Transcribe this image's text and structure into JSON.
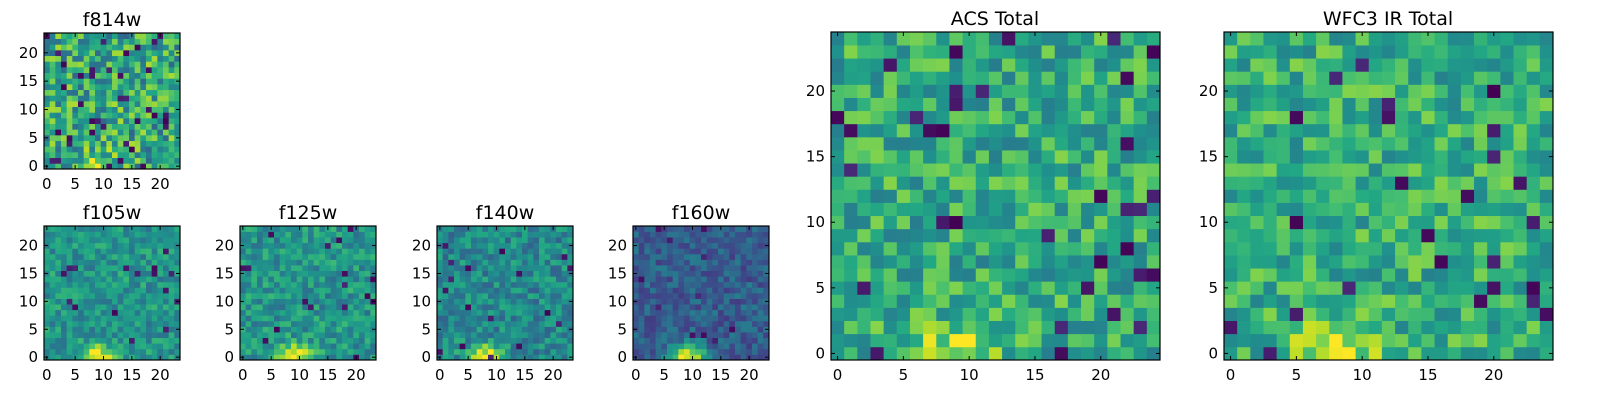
{
  "chart_data": [
    {
      "type": "heatmap",
      "title": "f814w",
      "grid_size": 24,
      "colormap": "viridis",
      "xticks": [
        0,
        5,
        10,
        15,
        20
      ],
      "yticks": [
        0,
        5,
        10,
        15,
        20
      ],
      "vmin": 0,
      "vmax": 1,
      "seed": 11,
      "base": 0.6,
      "noise": 0.55,
      "spot_prob": 0.06,
      "blob_amp": 0.35,
      "blob_x": 9,
      "blob_y": 0
    },
    {
      "type": "heatmap",
      "title": "f105w",
      "grid_size": 24,
      "colormap": "viridis",
      "xticks": [
        0,
        5,
        10,
        15,
        20
      ],
      "yticks": [
        0,
        5,
        10,
        15,
        20
      ],
      "vmin": 0,
      "vmax": 1,
      "seed": 23,
      "base": 0.52,
      "noise": 0.3,
      "spot_prob": 0.02,
      "blob_amp": 0.5,
      "blob_x": 9,
      "blob_y": 0
    },
    {
      "type": "heatmap",
      "title": "f125w",
      "grid_size": 24,
      "colormap": "viridis",
      "xticks": [
        0,
        5,
        10,
        15,
        20
      ],
      "yticks": [
        0,
        5,
        10,
        15,
        20
      ],
      "vmin": 0,
      "vmax": 1,
      "seed": 37,
      "base": 0.52,
      "noise": 0.32,
      "spot_prob": 0.03,
      "blob_amp": 0.5,
      "blob_x": 9,
      "blob_y": 0
    },
    {
      "type": "heatmap",
      "title": "f140w",
      "grid_size": 24,
      "colormap": "viridis",
      "xticks": [
        0,
        5,
        10,
        15,
        20
      ],
      "yticks": [
        0,
        5,
        10,
        15,
        20
      ],
      "vmin": 0,
      "vmax": 1,
      "seed": 41,
      "base": 0.47,
      "noise": 0.32,
      "spot_prob": 0.03,
      "blob_amp": 0.55,
      "blob_x": 8,
      "blob_y": 0
    },
    {
      "type": "heatmap",
      "title": "f160w",
      "grid_size": 24,
      "colormap": "viridis",
      "xticks": [
        0,
        5,
        10,
        15,
        20
      ],
      "yticks": [
        0,
        5,
        10,
        15,
        20
      ],
      "vmin": 0,
      "vmax": 1,
      "seed": 53,
      "base": 0.3,
      "noise": 0.25,
      "spot_prob": 0.03,
      "blob_amp": 0.7,
      "blob_x": 9,
      "blob_y": 0
    },
    {
      "type": "heatmap",
      "title": "ACS Total",
      "grid_size": 25,
      "colormap": "viridis",
      "xticks": [
        0,
        5,
        10,
        15,
        20
      ],
      "yticks": [
        0,
        5,
        10,
        15,
        20
      ],
      "vmin": 0,
      "vmax": 1,
      "seed": 67,
      "base": 0.62,
      "noise": 0.4,
      "spot_prob": 0.05,
      "blob_amp": 0.3,
      "blob_x": 9,
      "blob_y": 0
    },
    {
      "type": "heatmap",
      "title": "WFC3 IR Total",
      "grid_size": 25,
      "colormap": "viridis",
      "xticks": [
        0,
        5,
        10,
        15,
        20
      ],
      "yticks": [
        0,
        5,
        10,
        15,
        20
      ],
      "vmin": 0,
      "vmax": 1,
      "seed": 79,
      "base": 0.63,
      "noise": 0.38,
      "spot_prob": 0.04,
      "blob_amp": 0.35,
      "blob_x": 8,
      "blob_y": 0
    }
  ]
}
